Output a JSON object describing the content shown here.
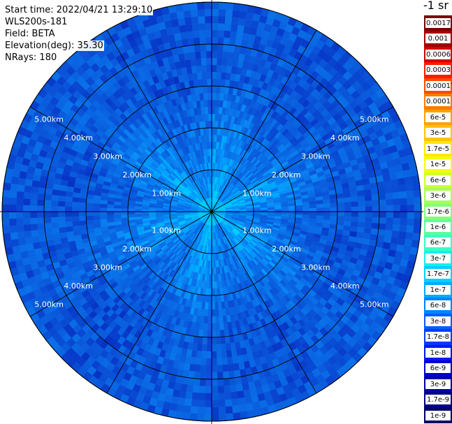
{
  "info": {
    "start_time": "Start time: 2022/04/21 13:29:10",
    "instrument": "WLS200s-181",
    "field": "Field: BETA",
    "elevation": "Elevation(deg): 35.30",
    "nrays": "NRays: 180"
  },
  "colorbar": {
    "unit": "-1 sr",
    "labels": [
      "0.0017",
      "0.001",
      "0.0006",
      "0.0003",
      "0.00017",
      "0.0001",
      "6e-5",
      "3e-5",
      "1.7e-5",
      "1e-5",
      "6e-6",
      "3e-6",
      "1.7e-6",
      "1e-6",
      "6e-7",
      "3e-7",
      "1.7e-7",
      "1e-7",
      "6e-8",
      "3e-8",
      "1.7e-8",
      "1e-8",
      "6e-9",
      "3e-9",
      "1.7e-9",
      "1e-9"
    ],
    "colors": [
      "#7a0000",
      "#a50000",
      "#d10000",
      "#ff1a00",
      "#ff4a00",
      "#ff7a00",
      "#ff9f00",
      "#ffc400",
      "#ffe800",
      "#f2ff0a",
      "#cfff2c",
      "#a8ff52",
      "#82ff78",
      "#5cff9e",
      "#38ffc4",
      "#14f0ea",
      "#00d0ff",
      "#00aaff",
      "#0084ff",
      "#005eff",
      "#003aff",
      "#0018ef",
      "#0000cd",
      "#0000ab",
      "#000089",
      "#000066"
    ]
  },
  "chart_data": {
    "type": "heatmap",
    "projection": "polar-ppi",
    "range_rings_km": [
      1,
      2,
      3,
      4,
      5
    ],
    "range_labels": [
      "1.00km",
      "2.00km",
      "3.00km",
      "4.00km",
      "5.00km"
    ],
    "radial_spokes_deg": [
      0,
      30,
      60,
      90,
      120,
      150,
      180,
      210,
      240,
      270,
      300,
      330
    ],
    "max_range_km": 5.0,
    "nrays": 180,
    "field": "BETA",
    "unit": "-1 sr",
    "value_range": [
      1e-09,
      0.0017
    ],
    "log_scale": true,
    "typical_values": {
      "near_center": "1.7e-7 to 6e-7",
      "inner_ring_1_2km": "6e-8 to 1.7e-7",
      "outer_ring_2_5km": "3e-8 to 1e-7"
    },
    "grid": true
  }
}
